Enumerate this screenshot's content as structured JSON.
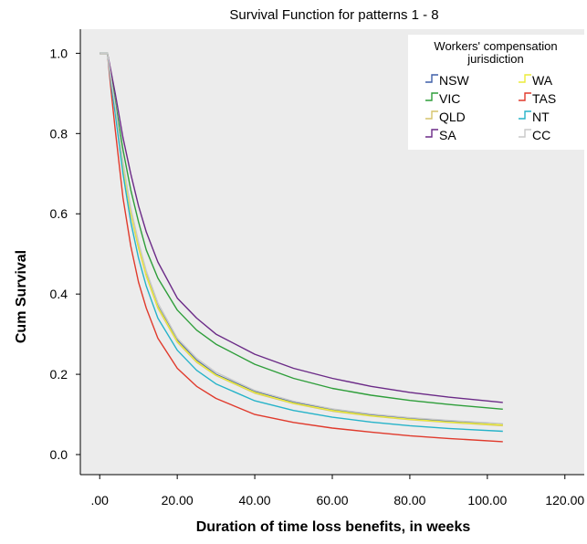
{
  "colors": {
    "plot_background": "#ececec",
    "page_background": "#ffffff",
    "legend_background": "#ffffff",
    "axis_line": "#000000"
  },
  "chart_data": {
    "type": "line",
    "title": "Survival Function for patterns 1 - 8",
    "xlabel": "Duration of time loss benefits, in weeks",
    "ylabel": "Cum Survival",
    "xlim": [
      -5,
      125
    ],
    "ylim": [
      -0.05,
      1.06
    ],
    "x_ticks": [
      0,
      20,
      40,
      60,
      80,
      100,
      120
    ],
    "x_tick_labels": [
      ".00",
      "20.00",
      "40.00",
      "60.00",
      "80.00",
      "100.00",
      "120.00"
    ],
    "y_ticks": [
      0,
      0.2,
      0.4,
      0.6,
      0.8,
      1.0
    ],
    "y_tick_labels": [
      "0.0",
      "0.2",
      "0.4",
      "0.6",
      "0.8",
      "1.0"
    ],
    "grid": false,
    "step_lines": true,
    "legend": {
      "title_line1": "Workers' compensation",
      "title_line2": "jurisdiction",
      "placement": "top-right"
    },
    "x": [
      0,
      2,
      3,
      4,
      6,
      8,
      10,
      12,
      15,
      20,
      25,
      30,
      40,
      50,
      60,
      70,
      80,
      90,
      104
    ],
    "series": [
      {
        "name": "NSW",
        "color": "#3f5fa8",
        "values": [
          1.0,
          1.0,
          0.93,
          0.86,
          0.72,
          0.61,
          0.52,
          0.45,
          0.37,
          0.285,
          0.235,
          0.2,
          0.157,
          0.13,
          0.112,
          0.099,
          0.09,
          0.083,
          0.075
        ]
      },
      {
        "name": "VIC",
        "color": "#2e9e3a",
        "values": [
          1.0,
          1.0,
          0.94,
          0.88,
          0.76,
          0.66,
          0.58,
          0.51,
          0.44,
          0.36,
          0.31,
          0.275,
          0.225,
          0.19,
          0.165,
          0.148,
          0.135,
          0.125,
          0.113
        ]
      },
      {
        "name": "QLD",
        "color": "#d6c46c",
        "values": [
          1.0,
          1.0,
          0.93,
          0.86,
          0.72,
          0.6,
          0.515,
          0.445,
          0.365,
          0.28,
          0.23,
          0.197,
          0.153,
          0.127,
          0.108,
          0.096,
          0.087,
          0.08,
          0.072
        ]
      },
      {
        "name": "SA",
        "color": "#6b2a87",
        "values": [
          1.0,
          1.0,
          0.95,
          0.9,
          0.79,
          0.7,
          0.62,
          0.555,
          0.48,
          0.39,
          0.34,
          0.3,
          0.25,
          0.215,
          0.19,
          0.17,
          0.155,
          0.143,
          0.13
        ]
      },
      {
        "name": "WA",
        "color": "#ecec3a",
        "values": [
          1.0,
          1.0,
          0.93,
          0.86,
          0.72,
          0.605,
          0.52,
          0.448,
          0.368,
          0.282,
          0.232,
          0.198,
          0.155,
          0.128,
          0.11,
          0.097,
          0.088,
          0.081,
          0.074
        ]
      },
      {
        "name": "TAS",
        "color": "#e03a2c",
        "values": [
          1.0,
          1.0,
          0.9,
          0.81,
          0.64,
          0.52,
          0.43,
          0.365,
          0.29,
          0.215,
          0.17,
          0.14,
          0.1,
          0.08,
          0.066,
          0.056,
          0.047,
          0.04,
          0.032
        ]
      },
      {
        "name": "NT",
        "color": "#26b3c9",
        "values": [
          1.0,
          1.0,
          0.92,
          0.85,
          0.7,
          0.58,
          0.49,
          0.42,
          0.34,
          0.26,
          0.21,
          0.176,
          0.134,
          0.11,
          0.093,
          0.081,
          0.072,
          0.065,
          0.058
        ]
      },
      {
        "name": "CC",
        "color": "#c9c9c9",
        "values": [
          1.0,
          1.0,
          0.93,
          0.87,
          0.73,
          0.615,
          0.53,
          0.458,
          0.378,
          0.29,
          0.24,
          0.205,
          0.16,
          0.133,
          0.114,
          0.101,
          0.092,
          0.085,
          0.077
        ]
      }
    ]
  }
}
